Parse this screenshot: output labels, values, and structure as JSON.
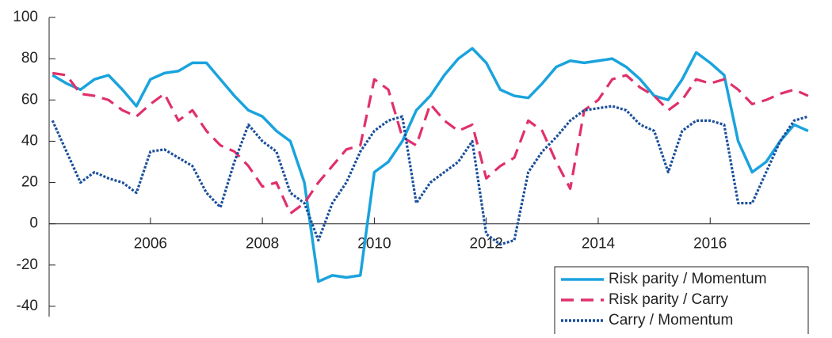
{
  "chart_data": {
    "type": "line",
    "x": [
      2004.25,
      2004.5,
      2004.75,
      2005,
      2005.25,
      2005.5,
      2005.75,
      2006,
      2006.25,
      2006.5,
      2006.75,
      2007,
      2007.25,
      2007.5,
      2007.75,
      2008,
      2008.25,
      2008.5,
      2008.75,
      2009,
      2009.25,
      2009.5,
      2009.75,
      2010,
      2010.25,
      2010.5,
      2010.75,
      2011,
      2011.25,
      2011.5,
      2011.75,
      2012,
      2012.25,
      2012.5,
      2012.75,
      2013,
      2013.25,
      2013.5,
      2013.75,
      2014,
      2014.25,
      2014.5,
      2014.75,
      2015,
      2015.25,
      2015.5,
      2015.75,
      2016,
      2016.25,
      2016.5,
      2016.75,
      2017,
      2017.25,
      2017.5,
      2017.75
    ],
    "series": [
      {
        "name": "Risk parity / Momentum",
        "color": "#1aa3dd",
        "dash": "solid",
        "values": [
          72,
          68,
          65,
          70,
          72,
          65,
          57,
          70,
          73,
          74,
          78,
          78,
          70,
          62,
          55,
          52,
          45,
          40,
          20,
          -28,
          -25,
          -26,
          -25,
          25,
          30,
          40,
          55,
          62,
          72,
          80,
          85,
          78,
          65,
          62,
          61,
          68,
          76,
          79,
          78,
          79,
          80,
          76,
          70,
          62,
          60,
          70,
          83,
          78,
          72,
          40,
          25,
          30,
          40,
          48,
          45
        ]
      },
      {
        "name": "Risk parity / Carry",
        "color": "#e0306a",
        "dash": "dashed",
        "values": [
          73,
          72,
          63,
          62,
          60,
          55,
          52,
          58,
          63,
          50,
          55,
          45,
          38,
          35,
          28,
          18,
          20,
          5,
          10,
          20,
          28,
          36,
          38,
          70,
          65,
          42,
          38,
          58,
          50,
          45,
          48,
          22,
          28,
          32,
          50,
          45,
          30,
          17,
          55,
          60,
          70,
          72,
          66,
          62,
          55,
          60,
          70,
          68,
          70,
          65,
          58,
          60,
          63,
          65,
          62
        ]
      },
      {
        "name": "Carry / Momentum",
        "color": "#1a4f9c",
        "dash": "dotted",
        "values": [
          50,
          35,
          20,
          25,
          22,
          20,
          15,
          35,
          36,
          32,
          28,
          15,
          8,
          30,
          48,
          40,
          35,
          15,
          10,
          -8,
          10,
          20,
          35,
          45,
          50,
          52,
          10,
          20,
          25,
          30,
          40,
          -5,
          -10,
          -8,
          25,
          35,
          42,
          50,
          55,
          56,
          57,
          55,
          48,
          45,
          25,
          45,
          50,
          50,
          48,
          10,
          10,
          25,
          40,
          50,
          52
        ]
      }
    ],
    "xlim": [
      2004.19,
      2017.78
    ],
    "xticks": [
      2006,
      2008,
      2010,
      2012,
      2014,
      2016
    ],
    "ylim": [
      -45,
      100
    ],
    "yticks": [
      -40,
      -20,
      0,
      20,
      40,
      60,
      80,
      100
    ],
    "legend": "lower right"
  }
}
